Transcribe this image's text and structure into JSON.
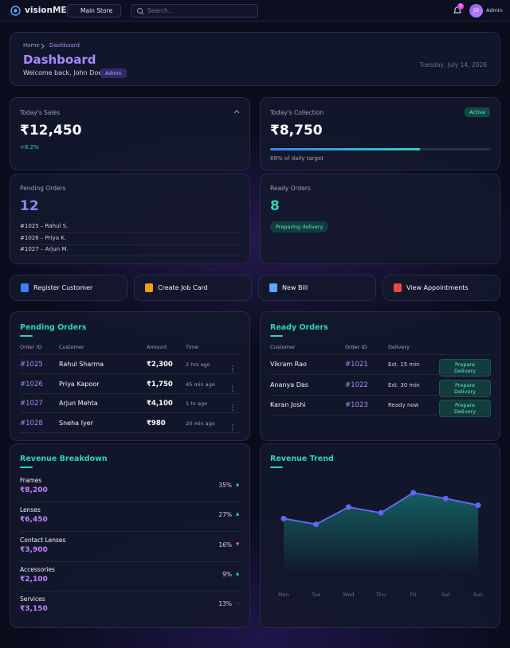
{
  "nav": {
    "brand": "visionME",
    "store": "Main Store",
    "search_placeholder": "Search...",
    "notifications": "3",
    "avatar": "JD",
    "user": "Admin"
  },
  "header": {
    "breadcrumb": [
      "Home",
      "Dashboard"
    ],
    "title": "Dashboard",
    "welcome": "Welcome back, John Doe",
    "role": "Admin",
    "date": "Tuesday, July 14, 2026"
  },
  "stats": {
    "sales": {
      "label": "Today's Sales",
      "value": "₹12,450",
      "change": "+8.2%"
    },
    "collection": {
      "label": "Today's Collection",
      "value": "₹8,750",
      "status": "Active",
      "progress": 68,
      "target": "68% of daily target"
    },
    "pending": {
      "label": "Pending Orders",
      "count": "12",
      "items": [
        "#1025 – Rahul S.",
        "#1026 – Priya K.",
        "#1027 – Arjun M."
      ]
    },
    "ready": {
      "label": "Ready Orders",
      "count": "8",
      "status": "Preparing delivery"
    }
  },
  "actions": [
    "Register Customer",
    "Create Job Card",
    "New Bill",
    "View Appointments"
  ],
  "pending_orders": {
    "title": "Pending Orders",
    "columns": [
      "Order ID",
      "Customer",
      "Amount",
      "Time"
    ],
    "rows": [
      [
        "#1025",
        "Rahul Sharma",
        "₹2,300",
        "2 hrs ago"
      ],
      [
        "#1026",
        "Priya Kapoor",
        "₹1,750",
        "45 min ago"
      ],
      [
        "#1027",
        "Arjun Mehta",
        "₹4,100",
        "1 hr ago"
      ],
      [
        "#1028",
        "Sneha Iyer",
        "₹980",
        "20 min ago"
      ]
    ]
  },
  "ready_orders": {
    "title": "Ready Orders",
    "columns": [
      "Customer",
      "Order ID",
      "Delivery"
    ],
    "rows": [
      [
        "Vikram Rao",
        "#1021",
        "Est. 15 min"
      ],
      [
        "Ananya Das",
        "#1022",
        "Est. 30 min"
      ],
      [
        "Karan Joshi",
        "#1023",
        "Ready now"
      ]
    ],
    "action": "Prepare Delivery"
  },
  "revenue_breakdown": {
    "title": "Revenue Breakdown",
    "items": [
      {
        "name": "Frames",
        "amount": "₹8,200",
        "share": "35%",
        "trend": "▲"
      },
      {
        "name": "Lenses",
        "amount": "₹6,450",
        "share": "27%",
        "trend": "▲"
      },
      {
        "name": "Contact Lenses",
        "amount": "₹3,900",
        "share": "16%",
        "trend": "▼"
      },
      {
        "name": "Accessories",
        "amount": "₹2,100",
        "share": "9%",
        "trend": "▲"
      },
      {
        "name": "Services",
        "amount": "₹3,150",
        "share": "13%",
        "trend": "—"
      }
    ]
  },
  "chart_data": {
    "type": "area",
    "title": "Revenue Trend",
    "categories": [
      "Mon",
      "Tue",
      "Wed",
      "Thu",
      "Fri",
      "Sat",
      "Sun"
    ],
    "values": [
      58,
      52,
      70,
      64,
      85,
      79,
      72
    ],
    "ylim": [
      0,
      100
    ],
    "color": "#6366f1"
  }
}
